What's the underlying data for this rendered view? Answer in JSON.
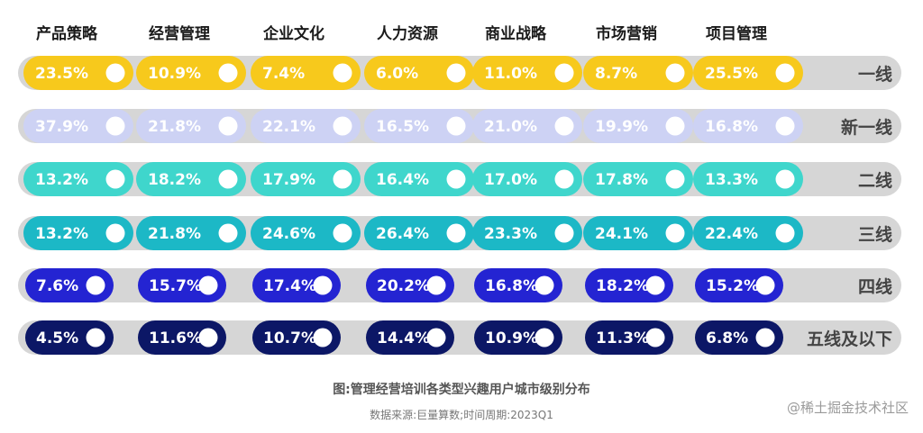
{
  "caption": "图:管理经营培训各类型兴趣用户城市级别分布",
  "source": "数据来源:巨量算数;时间周期:2023Q1",
  "watermark": "@稀土掘金技术社区",
  "colors": {
    "track": "#d6d6d6",
    "knob": "#ffffff"
  },
  "chart_data": {
    "type": "table",
    "categories": [
      "产品策略",
      "经营管理",
      "企业文化",
      "人力资源",
      "商业战略",
      "市场营销",
      "项目管理"
    ],
    "series": [
      {
        "name": "一线",
        "labels": [
          "23.5%",
          "10.9%",
          "7.4%",
          "6.0%",
          "11.0%",
          "8.7%",
          "25.5%"
        ],
        "values": [
          23.5,
          10.9,
          7.4,
          6.0,
          11.0,
          8.7,
          25.5
        ],
        "color": "#f7c91c",
        "text_color": "#ffffff"
      },
      {
        "name": "新一线",
        "labels": [
          "37.9%",
          "21.8%",
          "22.1%",
          "16.5%",
          "21.0%",
          "19.9%",
          "16.8%"
        ],
        "values": [
          37.9,
          21.8,
          22.1,
          16.5,
          21.0,
          19.9,
          16.8
        ],
        "color": "#cdd2f4",
        "text_color": "#ffffff"
      },
      {
        "name": "二线",
        "labels": [
          "13.2%",
          "18.2%",
          "17.9%",
          "16.4%",
          "17.0%",
          "17.8%",
          "13.3%"
        ],
        "values": [
          13.2,
          18.2,
          17.9,
          16.4,
          17.0,
          17.8,
          13.3
        ],
        "color": "#3fd6cc",
        "text_color": "#ffffff"
      },
      {
        "name": "三线",
        "labels": [
          "13.2%",
          "21.8%",
          "24.6%",
          "26.4%",
          "23.3%",
          "24.1%",
          "22.4%"
        ],
        "values": [
          13.2,
          21.8,
          24.6,
          26.4,
          23.3,
          24.1,
          22.4
        ],
        "color": "#1cb8c6",
        "text_color": "#ffffff"
      },
      {
        "name": "四线",
        "labels": [
          "7.6%",
          "15.7%",
          "17.4%",
          "20.2%",
          "16.8%",
          "18.2%",
          "15.2%"
        ],
        "values": [
          7.6,
          15.7,
          17.4,
          20.2,
          16.8,
          18.2,
          15.2
        ],
        "color": "#2424d2",
        "text_color": "#ffffff"
      },
      {
        "name": "五线及以下",
        "labels": [
          "4.5%",
          "11.6%",
          "10.7%",
          "14.4%",
          "10.9%",
          "11.3%",
          "6.8%"
        ],
        "values": [
          4.5,
          11.6,
          10.7,
          14.4,
          10.9,
          11.3,
          6.8
        ],
        "color": "#0c1766",
        "text_color": "#ffffff"
      }
    ]
  }
}
